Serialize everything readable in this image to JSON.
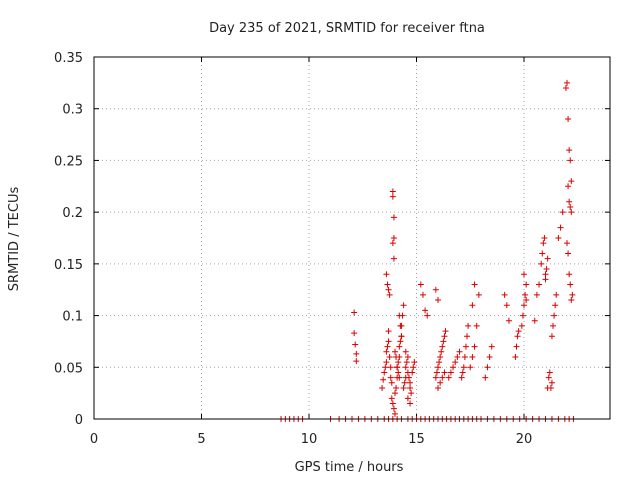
{
  "chart_data": {
    "type": "scatter",
    "title": "Day 235 of 2021, SRMTID for receiver ftna",
    "xlabel": "GPS time / hours",
    "ylabel": "SRMTID / TECUs",
    "xlim": [
      0,
      24
    ],
    "ylim": [
      0,
      0.35
    ],
    "xticks": [
      "0",
      "5",
      "10",
      "15",
      "20"
    ],
    "yticks": [
      "0",
      "0.05",
      "0.1",
      "0.15",
      "0.2",
      "0.25",
      "0.3",
      "0.35"
    ],
    "grid": true,
    "color": "#dd0000",
    "marker": "plus",
    "series": [
      {
        "x": [
          8.7,
          8.9,
          9.1,
          9.3,
          9.5,
          9.7,
          11.0,
          11.4,
          11.7,
          12.0,
          12.3,
          12.6,
          12.9,
          13.2,
          13.5,
          13.7,
          13.9,
          14.1,
          14.3,
          14.6,
          14.8,
          15.0,
          15.2,
          15.4,
          15.6,
          15.8,
          16.0,
          16.2,
          16.4,
          16.6,
          16.8,
          17.0,
          17.2,
          17.4,
          17.6,
          17.8,
          18.0,
          18.3,
          18.6,
          18.9,
          19.2,
          19.5,
          19.8,
          20.1,
          20.4,
          20.7,
          21.0,
          21.3,
          21.6,
          21.9,
          22.1,
          22.3,
          12.1,
          12.1,
          12.15,
          12.2,
          12.2,
          13.4,
          13.45,
          13.5,
          13.55,
          13.6,
          13.6,
          13.65,
          13.7,
          13.7,
          13.75,
          13.8,
          13.8,
          13.85,
          13.6,
          13.65,
          13.7,
          13.75,
          13.85,
          13.9,
          13.95,
          14.0,
          14.0,
          14.05,
          14.1,
          14.1,
          14.15,
          14.2,
          14.2,
          14.25,
          14.3,
          14.3,
          14.35,
          14.4,
          13.9,
          13.9,
          13.95,
          13.95,
          13.9,
          13.95,
          14.0,
          14.05,
          14.1,
          14.15,
          14.2,
          14.4,
          14.45,
          14.5,
          14.5,
          14.55,
          14.6,
          14.6,
          14.65,
          14.7,
          14.7,
          14.75,
          14.8,
          14.85,
          14.9,
          14.5,
          14.6,
          14.7,
          14.2,
          14.25,
          14.3,
          15.2,
          15.3,
          15.4,
          15.5,
          15.9,
          15.95,
          16.0,
          16.05,
          16.1,
          16.15,
          16.2,
          16.25,
          16.3,
          16.35,
          16.0,
          16.1,
          16.2,
          16.3,
          15.9,
          16.0,
          16.5,
          16.6,
          16.7,
          16.8,
          16.9,
          17.0,
          17.1,
          17.15,
          17.2,
          17.25,
          17.3,
          17.35,
          17.4,
          17.5,
          17.6,
          17.7,
          17.8,
          17.9,
          17.6,
          17.7,
          18.2,
          18.3,
          18.4,
          18.5,
          19.1,
          19.2,
          19.3,
          19.6,
          19.65,
          19.7,
          19.75,
          19.9,
          19.95,
          20.0,
          20.05,
          20.1,
          20.0,
          20.1,
          20.5,
          20.6,
          20.7,
          20.8,
          20.85,
          20.9,
          20.95,
          21.0,
          21.0,
          21.05,
          21.1,
          21.1,
          21.15,
          21.2,
          21.25,
          21.3,
          21.3,
          21.35,
          21.4,
          21.45,
          21.5,
          21.6,
          21.7,
          21.8,
          21.95,
          22.0,
          22.05,
          22.1,
          22.15,
          22.2,
          22.05,
          22.1,
          22.15,
          22.2,
          22.0,
          22.05,
          22.1,
          22.15,
          22.2,
          22.25
        ],
        "y": [
          0,
          0,
          0,
          0,
          0,
          0,
          0,
          0,
          0,
          0,
          0,
          0,
          0,
          0,
          0,
          0,
          0,
          0,
          0,
          0,
          0,
          0,
          0,
          0,
          0,
          0,
          0,
          0,
          0,
          0,
          0,
          0,
          0,
          0,
          0,
          0,
          0,
          0,
          0,
          0,
          0,
          0,
          0,
          0,
          0,
          0,
          0,
          0,
          0,
          0,
          0,
          0,
          0.103,
          0.083,
          0.072,
          0.063,
          0.056,
          0.03,
          0.038,
          0.045,
          0.05,
          0.055,
          0.065,
          0.07,
          0.075,
          0.085,
          0.06,
          0.05,
          0.04,
          0.035,
          0.14,
          0.13,
          0.125,
          0.12,
          0.02,
          0.015,
          0.01,
          0.005,
          0.025,
          0.03,
          0.04,
          0.05,
          0.055,
          0.06,
          0.07,
          0.075,
          0.08,
          0.09,
          0.1,
          0.11,
          0.22,
          0.215,
          0.195,
          0.175,
          0.17,
          0.155,
          0.065,
          0.06,
          0.05,
          0.045,
          0.04,
          0.03,
          0.035,
          0.04,
          0.05,
          0.055,
          0.06,
          0.045,
          0.04,
          0.035,
          0.03,
          0.025,
          0.045,
          0.05,
          0.055,
          0.065,
          0.02,
          0.015,
          0.1,
          0.09,
          0.08,
          0.13,
          0.12,
          0.105,
          0.1,
          0.04,
          0.045,
          0.05,
          0.055,
          0.06,
          0.065,
          0.07,
          0.075,
          0.08,
          0.085,
          0.03,
          0.035,
          0.04,
          0.045,
          0.125,
          0.115,
          0.04,
          0.045,
          0.05,
          0.055,
          0.06,
          0.065,
          0.04,
          0.045,
          0.05,
          0.06,
          0.07,
          0.08,
          0.09,
          0.05,
          0.06,
          0.07,
          0.09,
          0.12,
          0.11,
          0.13,
          0.04,
          0.05,
          0.06,
          0.07,
          0.12,
          0.11,
          0.095,
          0.06,
          0.07,
          0.08,
          0.085,
          0.09,
          0.1,
          0.11,
          0.12,
          0.13,
          0.14,
          0.115,
          0.095,
          0.12,
          0.13,
          0.15,
          0.16,
          0.17,
          0.175,
          0.14,
          0.135,
          0.145,
          0.155,
          0.03,
          0.04,
          0.045,
          0.03,
          0.035,
          0.08,
          0.09,
          0.1,
          0.11,
          0.12,
          0.175,
          0.185,
          0.2,
          0.32,
          0.325,
          0.29,
          0.26,
          0.25,
          0.23,
          0.225,
          0.21,
          0.205,
          0.2,
          0.17,
          0.16,
          0.14,
          0.13,
          0.115,
          0.12
        ]
      }
    ]
  }
}
